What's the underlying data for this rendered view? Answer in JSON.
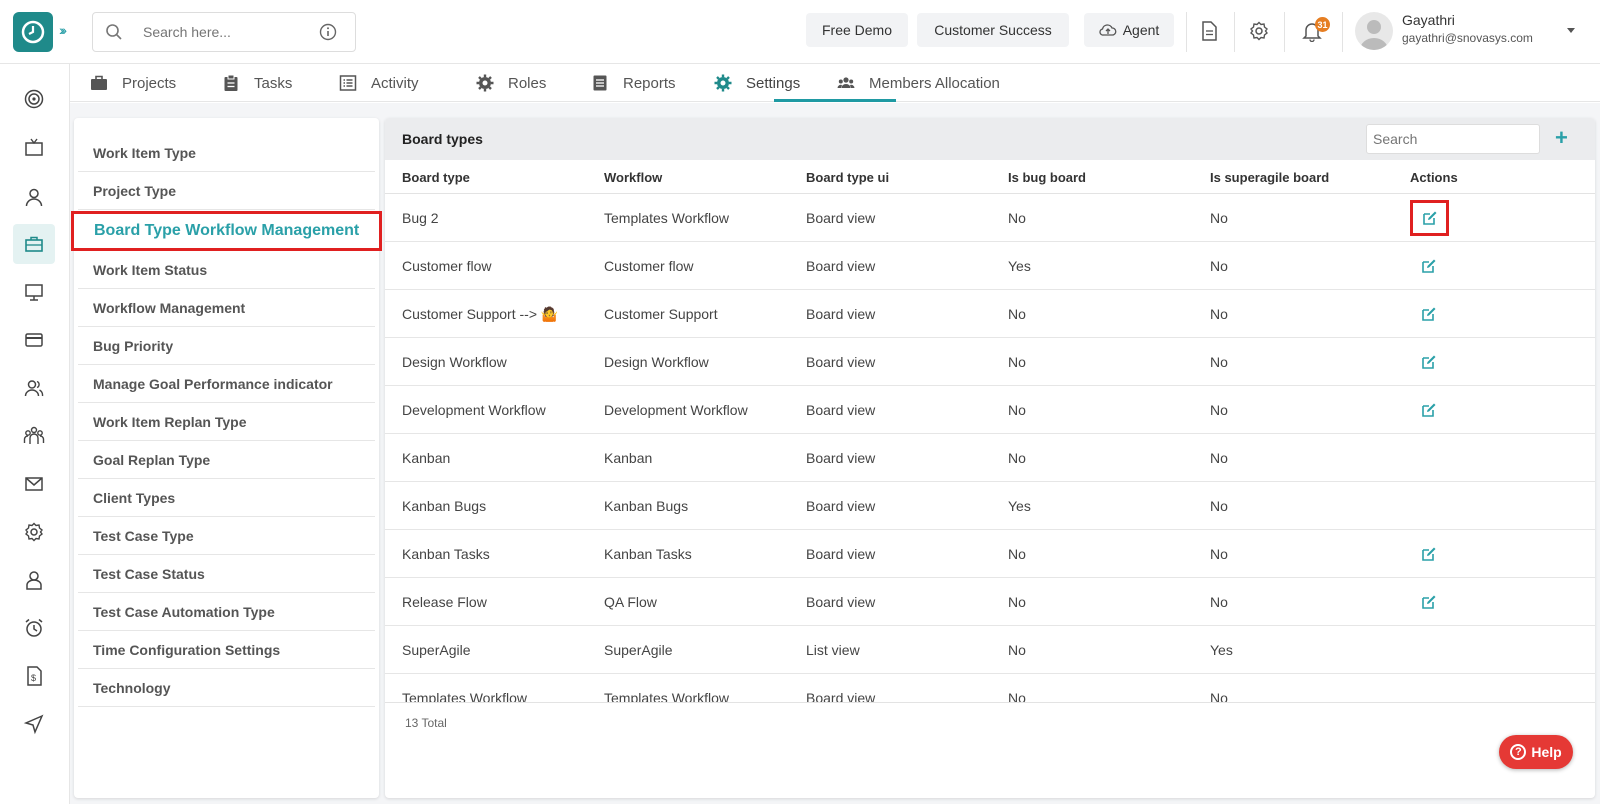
{
  "header": {
    "search_placeholder": "Search here...",
    "buttons": [
      "Free Demo",
      "Customer Success",
      "Agent"
    ],
    "notification_count": "31",
    "user": {
      "name": "Gayathri",
      "email": "gayathri@snovasys.com"
    }
  },
  "tabs": [
    {
      "label": "Projects",
      "icon": "briefcase-icon"
    },
    {
      "label": "Tasks",
      "icon": "clipboard-icon"
    },
    {
      "label": "Activity",
      "icon": "list-icon"
    },
    {
      "label": "Roles",
      "icon": "gear-icon"
    },
    {
      "label": "Reports",
      "icon": "document-icon"
    },
    {
      "label": "Settings",
      "icon": "gear-icon",
      "active": true
    },
    {
      "label": "Members Allocation",
      "icon": "users-icon"
    }
  ],
  "settings_menu": [
    "Work Item Type",
    "Project Type",
    "Board Type Workflow Management",
    "Work Item Status",
    "Workflow Management",
    "Bug Priority",
    "Manage Goal Performance indicator",
    "Work Item Replan Type",
    "Goal Replan Type",
    "Client Types",
    "Test Case Type",
    "Test Case Status",
    "Test Case Automation Type",
    "Time Configuration Settings",
    "Technology"
  ],
  "selected_menu_item": "Board Type Workflow Management",
  "board_types": {
    "title": "Board types",
    "search_placeholder": "Search",
    "add_label": "+",
    "columns": [
      "Board type",
      "Workflow",
      "Board type ui",
      "Is bug board",
      "Is superagile board",
      "Actions"
    ],
    "rows": [
      {
        "board_type": "Bug 2",
        "workflow": "Templates Workflow",
        "ui": "Board view",
        "bug": "No",
        "superagile": "No",
        "editable": true
      },
      {
        "board_type": "Customer flow",
        "workflow": "Customer flow",
        "ui": "Board view",
        "bug": "Yes",
        "superagile": "No",
        "editable": true
      },
      {
        "board_type": "Customer Support --> 🤷",
        "workflow": "Customer Support",
        "ui": "Board view",
        "bug": "No",
        "superagile": "No",
        "editable": true
      },
      {
        "board_type": "Design Workflow",
        "workflow": "Design Workflow",
        "ui": "Board view",
        "bug": "No",
        "superagile": "No",
        "editable": true
      },
      {
        "board_type": "Development Workflow",
        "workflow": "Development Workflow",
        "ui": "Board view",
        "bug": "No",
        "superagile": "No",
        "editable": true
      },
      {
        "board_type": "Kanban",
        "workflow": "Kanban",
        "ui": "Board view",
        "bug": "No",
        "superagile": "No",
        "editable": false
      },
      {
        "board_type": "Kanban Bugs",
        "workflow": "Kanban Bugs",
        "ui": "Board view",
        "bug": "Yes",
        "superagile": "No",
        "editable": false
      },
      {
        "board_type": "Kanban Tasks",
        "workflow": "Kanban Tasks",
        "ui": "Board view",
        "bug": "No",
        "superagile": "No",
        "editable": true
      },
      {
        "board_type": "Release Flow",
        "workflow": "QA Flow",
        "ui": "Board view",
        "bug": "No",
        "superagile": "No",
        "editable": true
      },
      {
        "board_type": "SuperAgile",
        "workflow": "SuperAgile",
        "ui": "List view",
        "bug": "No",
        "superagile": "Yes",
        "editable": false
      },
      {
        "board_type": "Templates Workflow",
        "workflow": "Templates Workflow",
        "ui": "Board view",
        "bug": "No",
        "superagile": "No",
        "editable": false
      }
    ],
    "total_label": "13 Total"
  },
  "help_label": "Help",
  "colors": {
    "accent": "#2aa0a8",
    "highlight": "#e02020",
    "help": "#e53935"
  }
}
